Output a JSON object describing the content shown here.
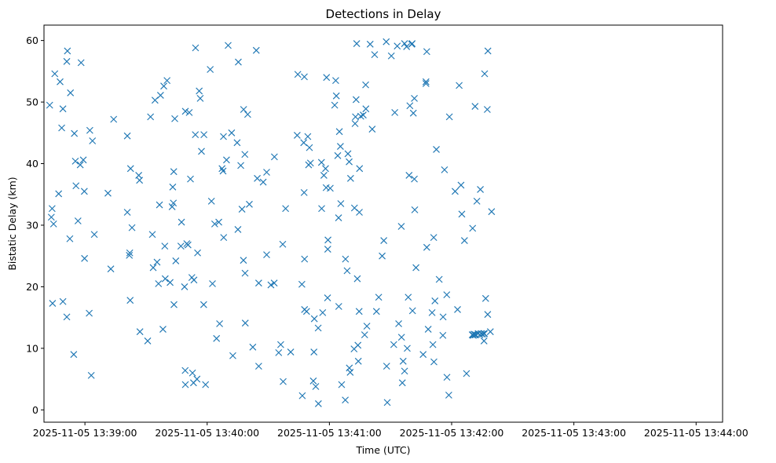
{
  "chart_data": {
    "type": "scatter",
    "title": "Detections in Delay",
    "xlabel": "Time (UTC)",
    "ylabel": "Bistatic Delay (km)",
    "x_ticks": [
      {
        "sec": 0,
        "label": "2025-11-05 13:39:00"
      },
      {
        "sec": 60,
        "label": "2025-11-05 13:40:00"
      },
      {
        "sec": 120,
        "label": "2025-11-05 13:41:00"
      },
      {
        "sec": 180,
        "label": "2025-11-05 13:42:00"
      },
      {
        "sec": 240,
        "label": "2025-11-05 13:43:00"
      },
      {
        "sec": 300,
        "label": "2025-11-05 13:44:00"
      }
    ],
    "y_ticks": [
      0,
      10,
      20,
      30,
      40,
      50,
      60
    ],
    "xlim_sec": [
      -20.1,
      313.0
    ],
    "ylim": [
      -2.0,
      62.5
    ],
    "marker": "x",
    "color": "#1f77b4",
    "grid": false,
    "points": [
      [
        -17.3,
        49.5
      ],
      [
        -14.8,
        54.6
      ],
      [
        -12.2,
        53.3
      ],
      [
        -11.4,
        45.8
      ],
      [
        -10.8,
        48.9
      ],
      [
        -8.6,
        58.3
      ],
      [
        -8.9,
        56.6
      ],
      [
        -7.1,
        51.5
      ],
      [
        -5.2,
        44.9
      ],
      [
        -4.7,
        40.4
      ],
      [
        -4.4,
        36.4
      ],
      [
        -3.4,
        30.7
      ],
      [
        -2.3,
        39.8
      ],
      [
        -1.9,
        56.4
      ],
      [
        -0.8,
        40.6
      ],
      [
        -0.3,
        35.5
      ],
      [
        -0.2,
        24.6
      ],
      [
        2.4,
        45.4
      ],
      [
        3.7,
        43.7
      ],
      [
        4.6,
        28.5
      ],
      [
        -16.1,
        32.7
      ],
      [
        -16.5,
        31.3
      ],
      [
        -15.4,
        30.2
      ],
      [
        -15.9,
        17.3
      ],
      [
        -12.9,
        35.1
      ],
      [
        -10.8,
        17.6
      ],
      [
        -8.9,
        15.1
      ],
      [
        -7.4,
        27.8
      ],
      [
        -5.5,
        9.0
      ],
      [
        2.1,
        15.7
      ],
      [
        3.1,
        5.6
      ],
      [
        11.3,
        35.2
      ],
      [
        12.7,
        22.9
      ],
      [
        14.1,
        47.2
      ],
      [
        20.8,
        44.5
      ],
      [
        20.8,
        32.1
      ],
      [
        21.8,
        25.1
      ],
      [
        22.0,
        25.5
      ],
      [
        22.2,
        17.8
      ],
      [
        22.4,
        39.2
      ],
      [
        23.1,
        29.6
      ],
      [
        26.4,
        38.1
      ],
      [
        26.8,
        37.3
      ],
      [
        27.0,
        12.7
      ],
      [
        30.8,
        11.2
      ],
      [
        33.1,
        28.5
      ],
      [
        32.2,
        47.6
      ],
      [
        33.5,
        23.1
      ],
      [
        34.4,
        50.3
      ],
      [
        35.4,
        24.0
      ],
      [
        36.1,
        20.5
      ],
      [
        36.6,
        33.3
      ],
      [
        37.1,
        51.1
      ],
      [
        38.3,
        13.1
      ],
      [
        38.7,
        52.6
      ],
      [
        39.4,
        21.3
      ],
      [
        39.2,
        26.6
      ],
      [
        40.3,
        53.5
      ],
      [
        41.8,
        20.7
      ],
      [
        42.8,
        33.0
      ],
      [
        43.4,
        33.6
      ],
      [
        43.1,
        36.2
      ],
      [
        43.6,
        38.7
      ],
      [
        43.7,
        17.1
      ],
      [
        44.1,
        47.3
      ],
      [
        44.6,
        24.2
      ],
      [
        47.1,
        26.6
      ],
      [
        47.4,
        30.5
      ],
      [
        48.9,
        20.0
      ],
      [
        49.3,
        48.5
      ],
      [
        49.2,
        6.4
      ],
      [
        49.3,
        4.1
      ],
      [
        50.0,
        27.0
      ],
      [
        50.6,
        26.8
      ],
      [
        51.2,
        48.3
      ],
      [
        51.8,
        37.5
      ],
      [
        52.5,
        21.5
      ],
      [
        52.8,
        6.0
      ],
      [
        53.3,
        4.4
      ],
      [
        53.5,
        21.1
      ],
      [
        54.2,
        44.7
      ],
      [
        54.3,
        58.8
      ],
      [
        55.3,
        25.5
      ],
      [
        55.0,
        5.0
      ],
      [
        56.1,
        51.8
      ],
      [
        56.6,
        50.6
      ],
      [
        57.2,
        42.0
      ],
      [
        58.3,
        17.1
      ],
      [
        58.4,
        44.7
      ],
      [
        59.2,
        4.1
      ],
      [
        61.5,
        55.3
      ],
      [
        62.1,
        33.9
      ],
      [
        62.6,
        20.5
      ],
      [
        63.7,
        30.2
      ],
      [
        64.6,
        11.6
      ],
      [
        65.7,
        30.5
      ],
      [
        66.1,
        14.0
      ],
      [
        67.3,
        39.2
      ],
      [
        67.8,
        38.8
      ],
      [
        68.0,
        44.4
      ],
      [
        68.1,
        28.0
      ],
      [
        69.5,
        40.6
      ],
      [
        70.3,
        59.2
      ],
      [
        72.0,
        45.0
      ],
      [
        72.6,
        8.8
      ],
      [
        74.7,
        43.4
      ],
      [
        75.1,
        29.3
      ],
      [
        75.3,
        56.5
      ],
      [
        76.5,
        39.7
      ],
      [
        77.1,
        32.6
      ],
      [
        77.8,
        24.3
      ],
      [
        77.9,
        48.8
      ],
      [
        78.5,
        41.5
      ],
      [
        78.6,
        22.2
      ],
      [
        78.7,
        14.1
      ],
      [
        79.9,
        48.0
      ],
      [
        80.7,
        33.4
      ],
      [
        82.4,
        10.2
      ],
      [
        84.1,
        58.4
      ],
      [
        84.6,
        37.6
      ],
      [
        85.3,
        20.6
      ],
      [
        85.3,
        7.1
      ],
      [
        87.5,
        37.0
      ],
      [
        89.2,
        25.2
      ],
      [
        89.2,
        38.6
      ],
      [
        91.3,
        20.3
      ],
      [
        92.9,
        20.6
      ],
      [
        93.0,
        41.1
      ],
      [
        95.1,
        9.3
      ],
      [
        96.1,
        10.6
      ],
      [
        97.1,
        26.9
      ],
      [
        97.3,
        4.6
      ],
      [
        98.5,
        32.7
      ],
      [
        101.0,
        9.4
      ],
      [
        104.2,
        44.6
      ],
      [
        104.5,
        54.5
      ],
      [
        106.5,
        20.4
      ],
      [
        106.7,
        2.3
      ],
      [
        107.4,
        43.4
      ],
      [
        107.7,
        54.1
      ],
      [
        107.6,
        35.3
      ],
      [
        107.8,
        24.5
      ],
      [
        107.8,
        16.3
      ],
      [
        108.8,
        16.0
      ],
      [
        109.4,
        44.4
      ],
      [
        109.8,
        39.8
      ],
      [
        110.2,
        42.6
      ],
      [
        110.7,
        40.1
      ],
      [
        112.1,
        4.7
      ],
      [
        112.4,
        9.4
      ],
      [
        112.6,
        14.8
      ],
      [
        113.3,
        3.8
      ],
      [
        114.6,
        1.0
      ],
      [
        114.5,
        13.3
      ],
      [
        116.1,
        40.2
      ],
      [
        116.2,
        32.7
      ],
      [
        116.7,
        15.8
      ],
      [
        117.3,
        38.1
      ],
      [
        118.1,
        39.2
      ],
      [
        118.4,
        36.1
      ],
      [
        118.6,
        54.0
      ],
      [
        119.1,
        18.2
      ],
      [
        119.3,
        27.6
      ],
      [
        119.2,
        26.1
      ],
      [
        120.4,
        36.0
      ],
      [
        122.6,
        49.5
      ],
      [
        123.1,
        53.5
      ],
      [
        123.4,
        51.0
      ],
      [
        124.1,
        41.3
      ],
      [
        124.5,
        31.2
      ],
      [
        124.6,
        16.8
      ],
      [
        124.9,
        45.2
      ],
      [
        125.4,
        42.8
      ],
      [
        125.6,
        33.5
      ],
      [
        126.0,
        4.1
      ],
      [
        127.8,
        1.6
      ],
      [
        127.9,
        24.5
      ],
      [
        128.7,
        22.6
      ],
      [
        129.1,
        41.6
      ],
      [
        129.7,
        40.3
      ],
      [
        129.8,
        6.8
      ],
      [
        130.2,
        6.1
      ],
      [
        130.4,
        37.6
      ],
      [
        132.1,
        9.9
      ],
      [
        132.3,
        32.8
      ],
      [
        132.6,
        46.5
      ],
      [
        132.8,
        47.6
      ],
      [
        133.1,
        50.4
      ],
      [
        133.4,
        59.5
      ],
      [
        133.7,
        21.3
      ],
      [
        134.0,
        10.5
      ],
      [
        134.2,
        7.9
      ],
      [
        134.6,
        16.0
      ],
      [
        134.8,
        39.2
      ],
      [
        134.7,
        32.1
      ],
      [
        135.4,
        47.7
      ],
      [
        136.6,
        47.9
      ],
      [
        137.3,
        12.2
      ],
      [
        137.8,
        52.8
      ],
      [
        137.9,
        48.9
      ],
      [
        138.4,
        13.6
      ],
      [
        140.0,
        59.4
      ],
      [
        141.0,
        45.6
      ],
      [
        142.2,
        57.7
      ],
      [
        143.1,
        16.0
      ],
      [
        144.2,
        18.3
      ],
      [
        145.9,
        25.0
      ],
      [
        146.7,
        27.5
      ],
      [
        147.9,
        59.8
      ],
      [
        148.1,
        7.1
      ],
      [
        148.4,
        1.2
      ],
      [
        150.4,
        57.5
      ],
      [
        151.6,
        10.6
      ],
      [
        152.1,
        48.3
      ],
      [
        153.3,
        59.1
      ],
      [
        154.0,
        14.0
      ],
      [
        155.3,
        29.8
      ],
      [
        155.4,
        11.8
      ],
      [
        155.8,
        4.4
      ],
      [
        156.2,
        7.9
      ],
      [
        156.9,
        59.5
      ],
      [
        156.9,
        6.3
      ],
      [
        157.9,
        59.0
      ],
      [
        158.2,
        10.0
      ],
      [
        158.7,
        18.3
      ],
      [
        159.1,
        38.1
      ],
      [
        159.5,
        49.4
      ],
      [
        160.4,
        59.4
      ],
      [
        160.6,
        59.5
      ],
      [
        160.8,
        16.1
      ],
      [
        161.2,
        48.2
      ],
      [
        161.7,
        37.5
      ],
      [
        161.7,
        50.6
      ],
      [
        161.9,
        32.5
      ],
      [
        162.5,
        23.1
      ],
      [
        166.0,
        9.0
      ],
      [
        167.4,
        53.3
      ],
      [
        167.4,
        53.0
      ],
      [
        167.8,
        58.2
      ],
      [
        167.8,
        26.4
      ],
      [
        168.5,
        13.1
      ],
      [
        170.4,
        15.8
      ],
      [
        170.8,
        10.6
      ],
      [
        171.2,
        28.0
      ],
      [
        171.3,
        7.8
      ],
      [
        171.8,
        17.7
      ],
      [
        172.5,
        42.3
      ],
      [
        173.9,
        21.2
      ],
      [
        175.7,
        12.1
      ],
      [
        175.8,
        15.1
      ],
      [
        176.5,
        39.0
      ],
      [
        177.7,
        5.3
      ],
      [
        177.6,
        18.7
      ],
      [
        178.6,
        2.4
      ],
      [
        178.9,
        47.6
      ],
      [
        181.7,
        35.5
      ],
      [
        182.9,
        16.3
      ],
      [
        183.7,
        52.7
      ],
      [
        184.6,
        36.5
      ],
      [
        185.0,
        31.8
      ],
      [
        186.3,
        27.5
      ],
      [
        187.3,
        5.9
      ],
      [
        190.1,
        12.2
      ],
      [
        190.3,
        29.5
      ],
      [
        190.4,
        12.2
      ],
      [
        190.6,
        12.1
      ],
      [
        191.0,
        12.3
      ],
      [
        191.5,
        49.3
      ],
      [
        191.5,
        12.2
      ],
      [
        191.7,
        12.2
      ],
      [
        191.8,
        12.2
      ],
      [
        192.4,
        33.9
      ],
      [
        193.0,
        12.4
      ],
      [
        193.9,
        12.2
      ],
      [
        194.5,
        12.4
      ],
      [
        194.1,
        35.8
      ],
      [
        195.1,
        12.3
      ],
      [
        195.8,
        12.4
      ],
      [
        195.9,
        11.2
      ],
      [
        196.1,
        12.4
      ],
      [
        196.2,
        54.6
      ],
      [
        196.7,
        18.1
      ],
      [
        197.5,
        48.8
      ],
      [
        197.7,
        15.5
      ],
      [
        197.8,
        58.3
      ],
      [
        199.0,
        12.7
      ],
      [
        199.6,
        32.2
      ]
    ]
  }
}
